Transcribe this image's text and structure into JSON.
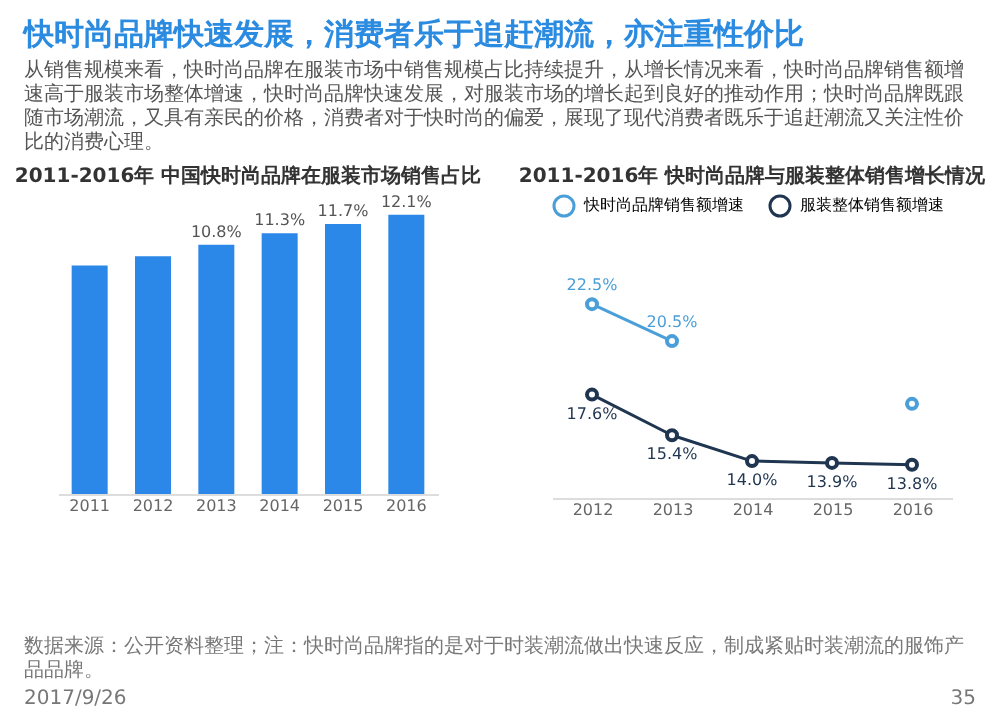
{
  "chart_data": [
    {
      "type": "other",
      "title": "快时尚品牌快速发展，消费者乐于追赶潮流，亦注重性价比",
      "subtitle": "从销售规模来看，快时尚品牌在服装市场中销售规模占比持续提升，从增长情况来看，快时尚品牌销售额增速高于服装市场整体增速，快时尚品牌快速发展，对服装市场的增长起到良好的推动作用；快时尚品牌既跟随市场潮流，又具有亲民的价格，消费者对于快时尚的偏爱，展现了现代消费者既乐于追赶潮流又关注性价比的消费心理。",
      "annotations": [
        "数据来源：公开资料整理；注：快时尚品牌指的是对于时装潮流做出快速反应，制成紧贴时装潮流的服饰产品品牌。",
        "2017/9/26",
        "35"
      ]
    },
    {
      "type": "bar",
      "title": "2011-2016年 中国快时尚品牌在服装市场销售占比",
      "categories": [
        "2011",
        "2012",
        "2013",
        "2014",
        "2015",
        "2016"
      ],
      "values": [
        9.9,
        10.3,
        10.8,
        11.3,
        11.7,
        12.1
      ],
      "value_labels": [
        null,
        null,
        "10.8%",
        "11.3%",
        "11.7%",
        "12.1%"
      ],
      "color": "#2b87e8"
    },
    {
      "type": "line",
      "title": "2011-2016年 快时尚品牌与服装整体销售增长情况",
      "categories": [
        "2012",
        "2013",
        "2014",
        "2015",
        "2016"
      ],
      "legend": "top",
      "marker": "circle",
      "series": [
        {
          "name": "快时尚品牌销售额增速",
          "color": "#4a9fd8",
          "values": [
            22.5,
            20.5,
            null,
            null,
            17.1
          ],
          "value_labels": [
            "22.5%",
            "20.5%",
            null,
            null,
            null
          ]
        },
        {
          "name": "服装整体销售额增速",
          "color": "#1f3550",
          "values": [
            17.6,
            15.4,
            14.0,
            13.9,
            13.8
          ],
          "value_labels": [
            "17.6%",
            "15.4%",
            "14.0%",
            "13.9%",
            "13.8%"
          ]
        }
      ]
    }
  ]
}
